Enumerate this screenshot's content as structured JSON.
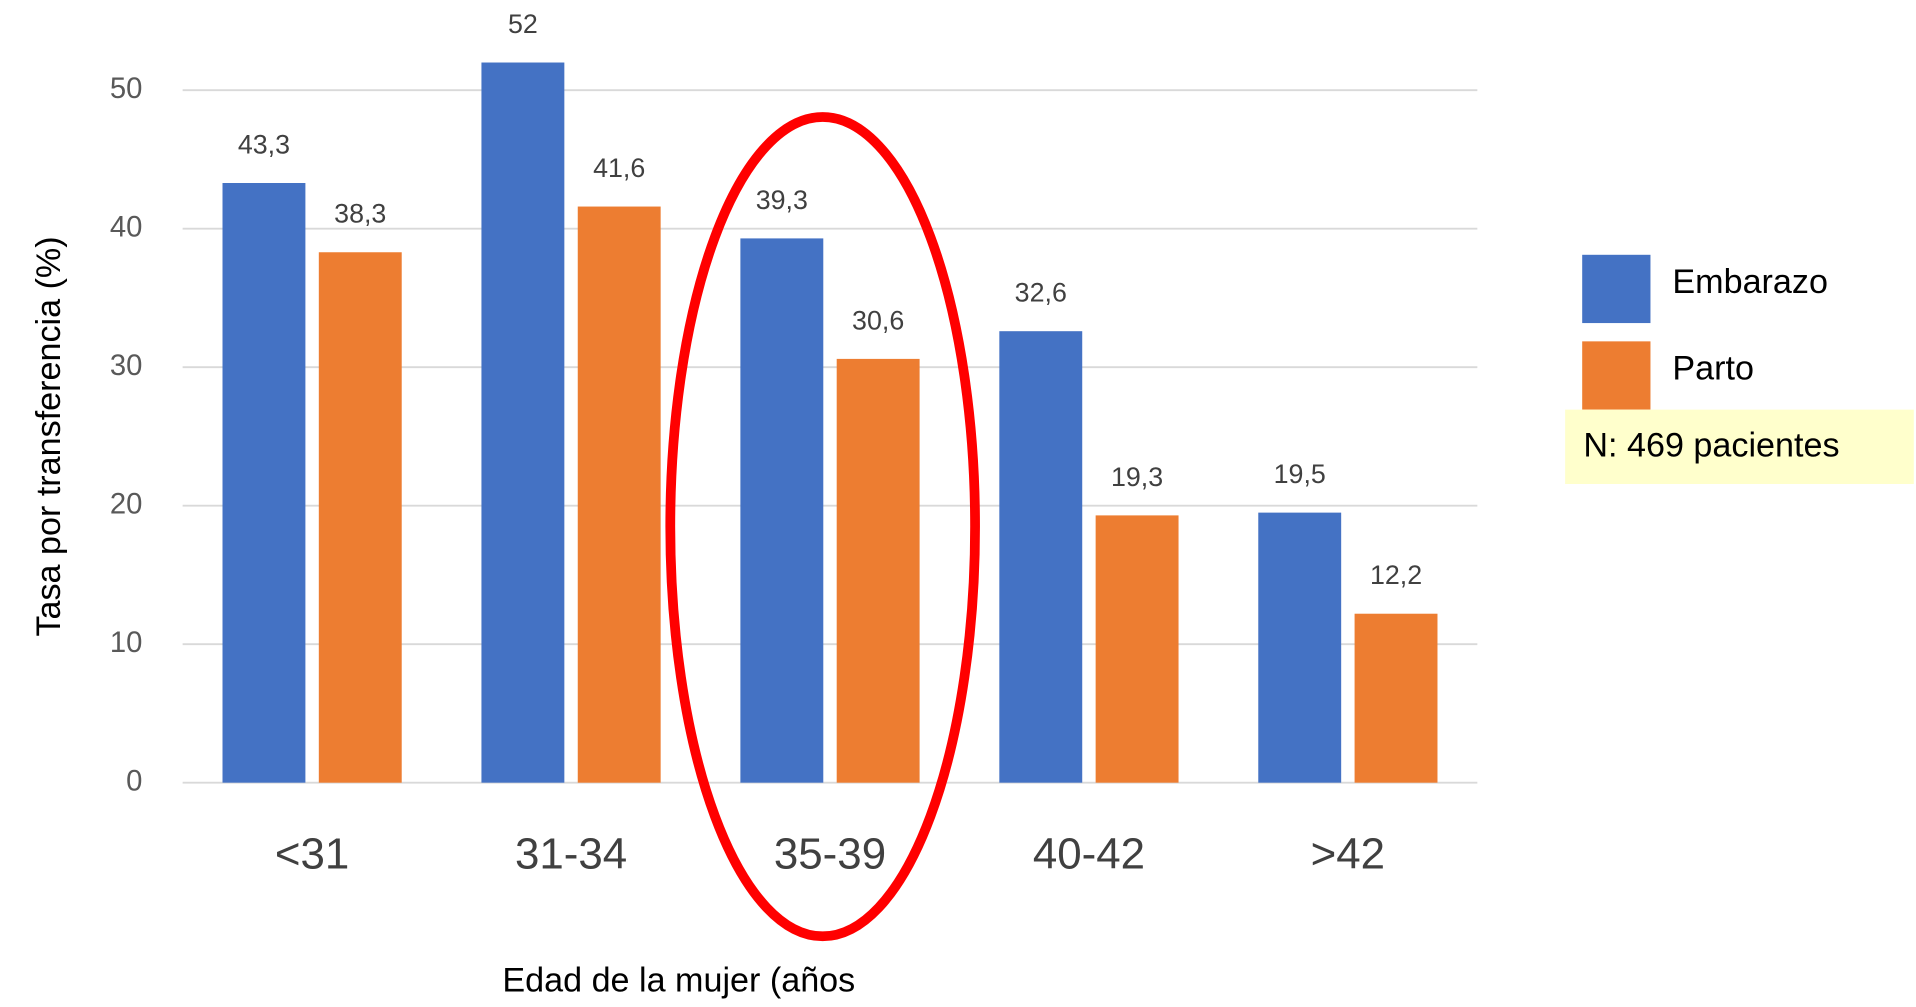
{
  "chart_data": {
    "type": "bar",
    "y_label": "Tasa por transferencia (%)",
    "x_label": "Edad de la mujer (años",
    "annotation": "N: 469 pacientes",
    "categories": [
      "<31",
      "31-34",
      "35-39",
      "40-42",
      ">42"
    ],
    "series": [
      {
        "name": "Embarazo",
        "color": "#4472c4",
        "values": [
          43.3,
          52,
          39.3,
          32.6,
          19.5
        ],
        "value_labels": [
          "43,3",
          "52",
          "39,3",
          "32,6",
          "19,5"
        ]
      },
      {
        "name": "Parto",
        "color": "#ed7d31",
        "values": [
          38.3,
          41.6,
          30.6,
          19.3,
          12.2
        ],
        "value_labels": [
          "38,3",
          "41,6",
          "30,6",
          "19,3",
          "12,2"
        ]
      }
    ],
    "ylim": [
      0,
      50
    ],
    "yticks": [
      0,
      10,
      20,
      30,
      40,
      50
    ],
    "grid": true,
    "legend": "right"
  }
}
